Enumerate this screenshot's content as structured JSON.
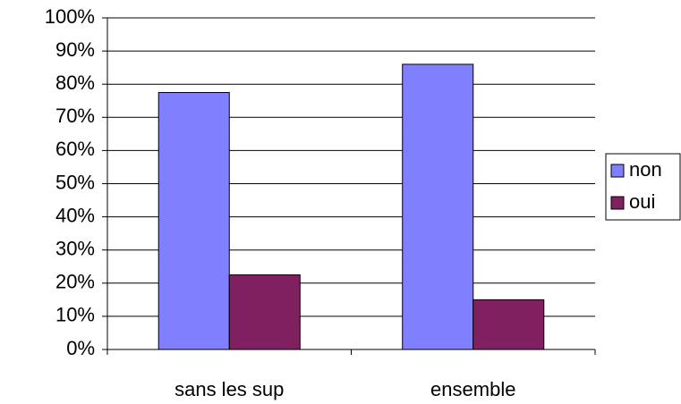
{
  "chart_data": {
    "type": "bar",
    "categories": [
      "sans les sup",
      "ensemble"
    ],
    "series": [
      {
        "name": "non",
        "color": "#8080ff",
        "values": [
          77.5,
          86
        ]
      },
      {
        "name": "oui",
        "color": "#802060",
        "values": [
          22.5,
          15
        ]
      }
    ],
    "ylim": [
      0,
      100
    ],
    "yticks": [
      {
        "value": 0,
        "label": "0%"
      },
      {
        "value": 10,
        "label": "10%"
      },
      {
        "value": 20,
        "label": "20%"
      },
      {
        "value": 30,
        "label": "30%"
      },
      {
        "value": 40,
        "label": "40%"
      },
      {
        "value": 50,
        "label": "50%"
      },
      {
        "value": 60,
        "label": "60%"
      },
      {
        "value": 70,
        "label": "70%"
      },
      {
        "value": 80,
        "label": "80%"
      },
      {
        "value": 90,
        "label": "90%"
      },
      {
        "value": 100,
        "label": "100%"
      }
    ],
    "grid": true,
    "legend": "right"
  }
}
